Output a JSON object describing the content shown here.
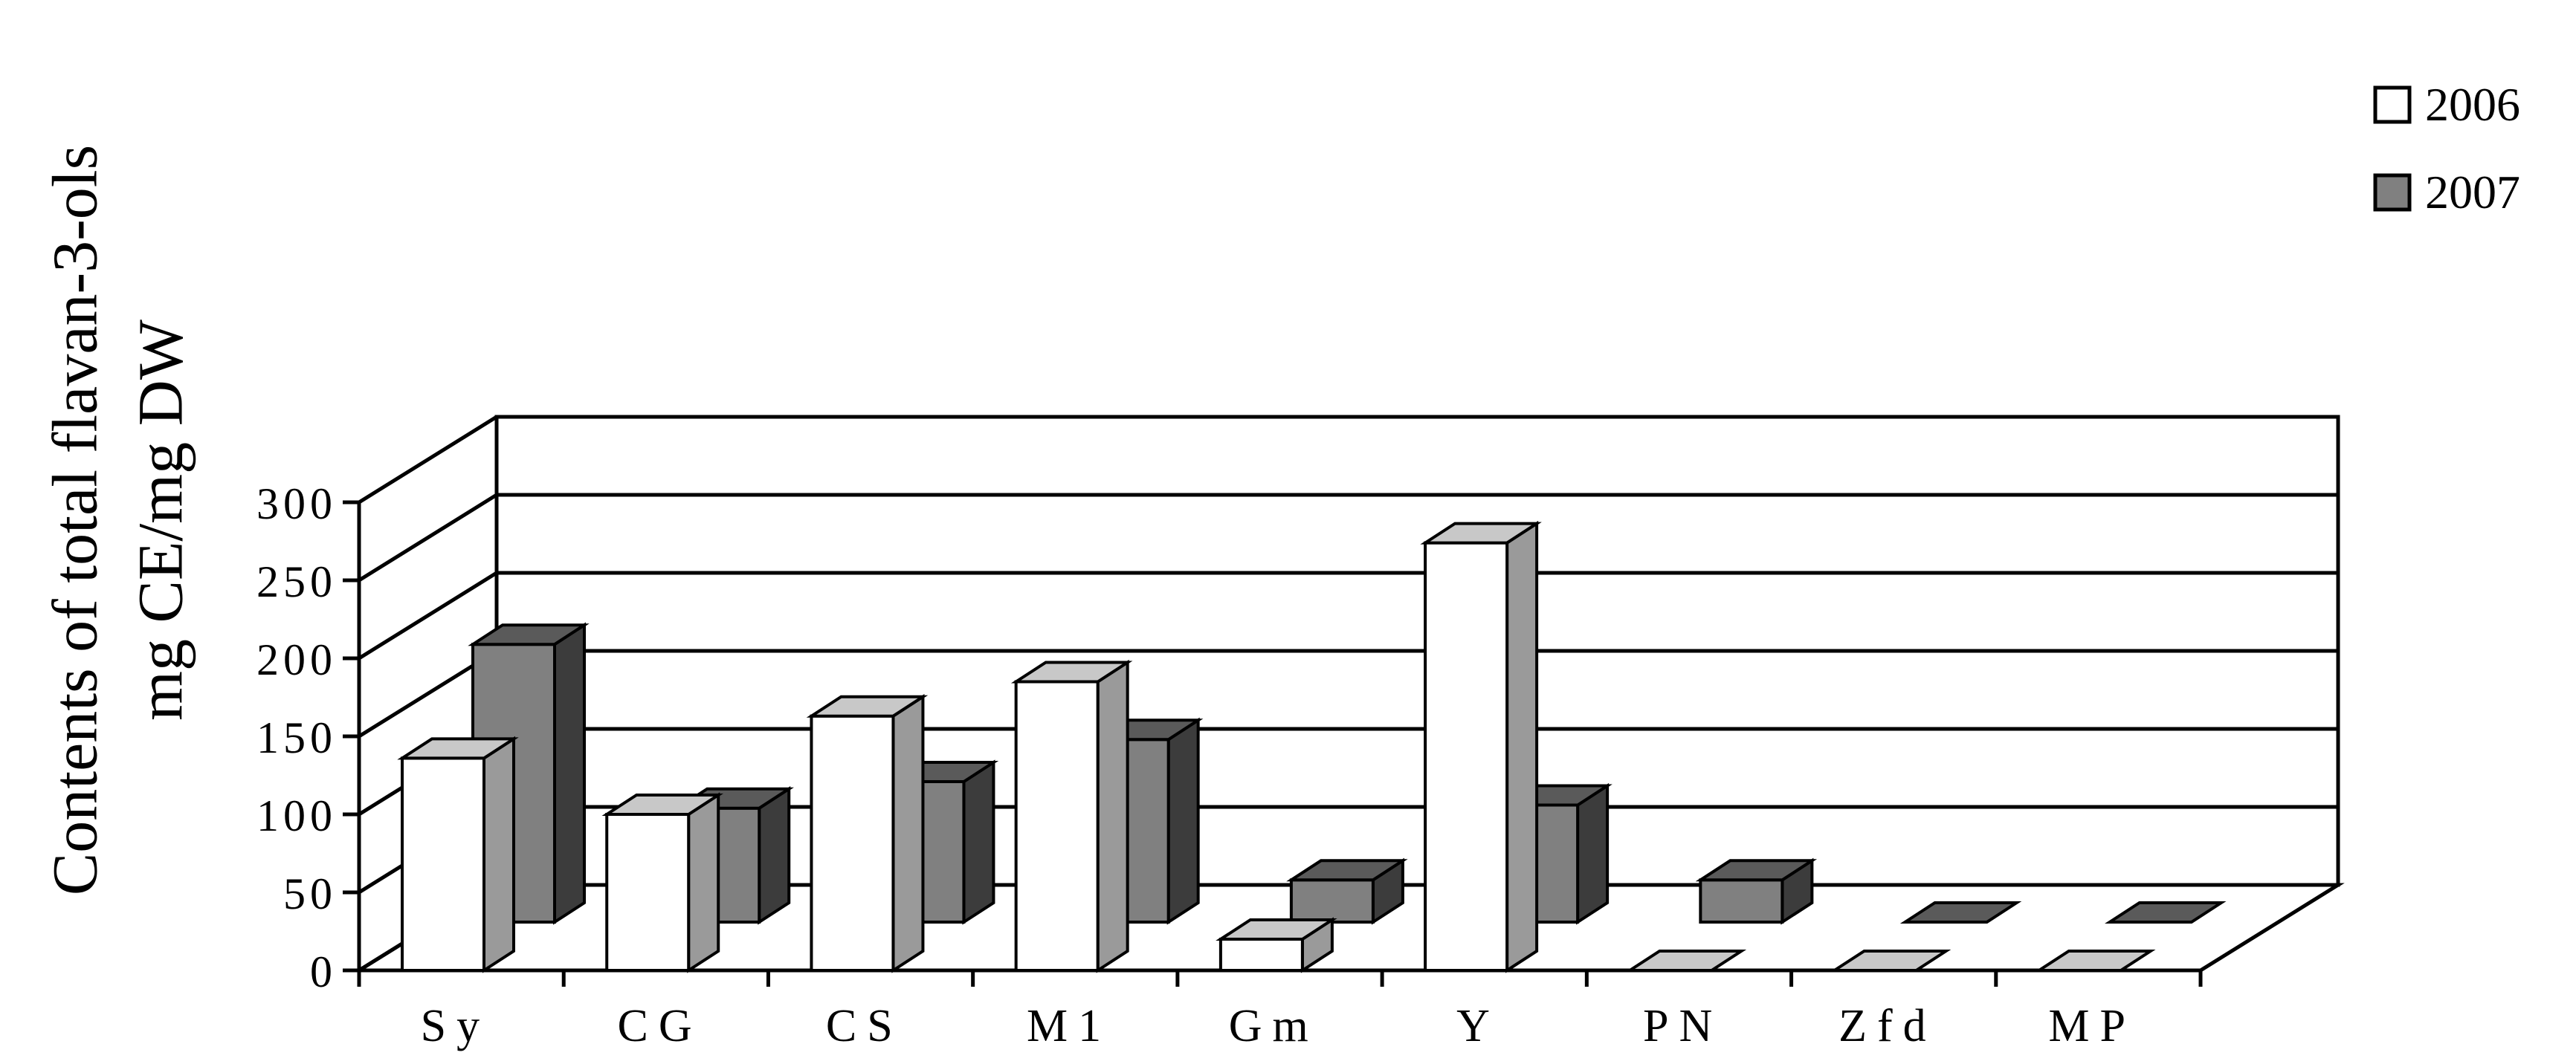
{
  "chart_data": {
    "type": "bar",
    "style": "3d-clustered",
    "categories": [
      "Sy",
      "CG",
      "CS",
      "M1",
      "Gm",
      "Y",
      "PN",
      "Zfd",
      "MP"
    ],
    "series": [
      {
        "name": "2006",
        "values": [
          136,
          100,
          163,
          185,
          20,
          274,
          0,
          0,
          0
        ],
        "color": "#ffffff"
      },
      {
        "name": "2007",
        "values": [
          178,
          73,
          90,
          117,
          27,
          75,
          27,
          0,
          0
        ],
        "color": "#808080"
      }
    ],
    "ylabel": [
      "Contents of total flavan-3-ols",
      "mg CE/mg DW"
    ],
    "xlabel": "",
    "ylim": [
      0,
      300
    ],
    "yticks": [
      0,
      50,
      100,
      150,
      200,
      250,
      300
    ],
    "grid": true,
    "legend": "top-right"
  }
}
